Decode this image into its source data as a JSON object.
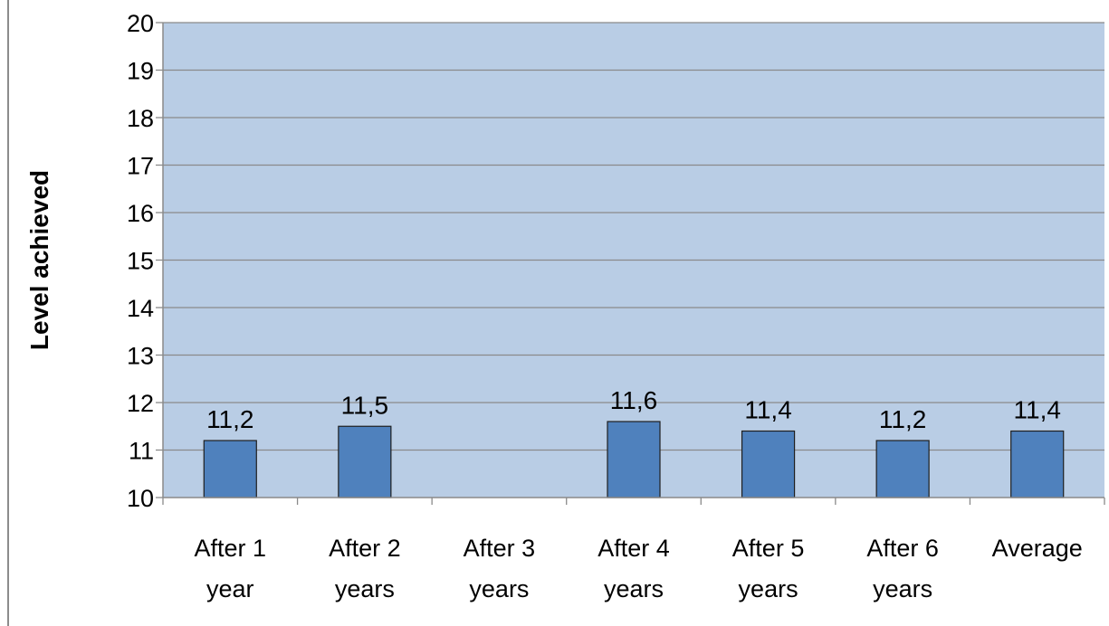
{
  "chart_data": {
    "type": "bar",
    "ylabel": "Level achieved",
    "xlabel": "",
    "ylim": [
      10,
      20
    ],
    "yticks": [
      "10",
      "11",
      "12",
      "13",
      "14",
      "15",
      "16",
      "17",
      "18",
      "19",
      "20"
    ],
    "categories": [
      [
        "After 1",
        "year"
      ],
      [
        "After 2",
        "years"
      ],
      [
        "After 3",
        "years"
      ],
      [
        "After 4",
        "years"
      ],
      [
        "After 5",
        "years"
      ],
      [
        "After 6",
        "years"
      ],
      [
        "Average"
      ]
    ],
    "values": [
      11.2,
      11.5,
      null,
      11.6,
      11.4,
      11.2,
      11.4
    ],
    "data_labels": [
      "11,2",
      "11,5",
      "",
      "11,6",
      "11,4",
      "11,2",
      "11,4"
    ],
    "grid": true,
    "legend": "none",
    "colors": {
      "plot_background": "#b9cde5",
      "bar_fill": "#4f81bd",
      "bar_stroke": "#1f1f1f",
      "gridline": "#8a8a8a"
    }
  }
}
